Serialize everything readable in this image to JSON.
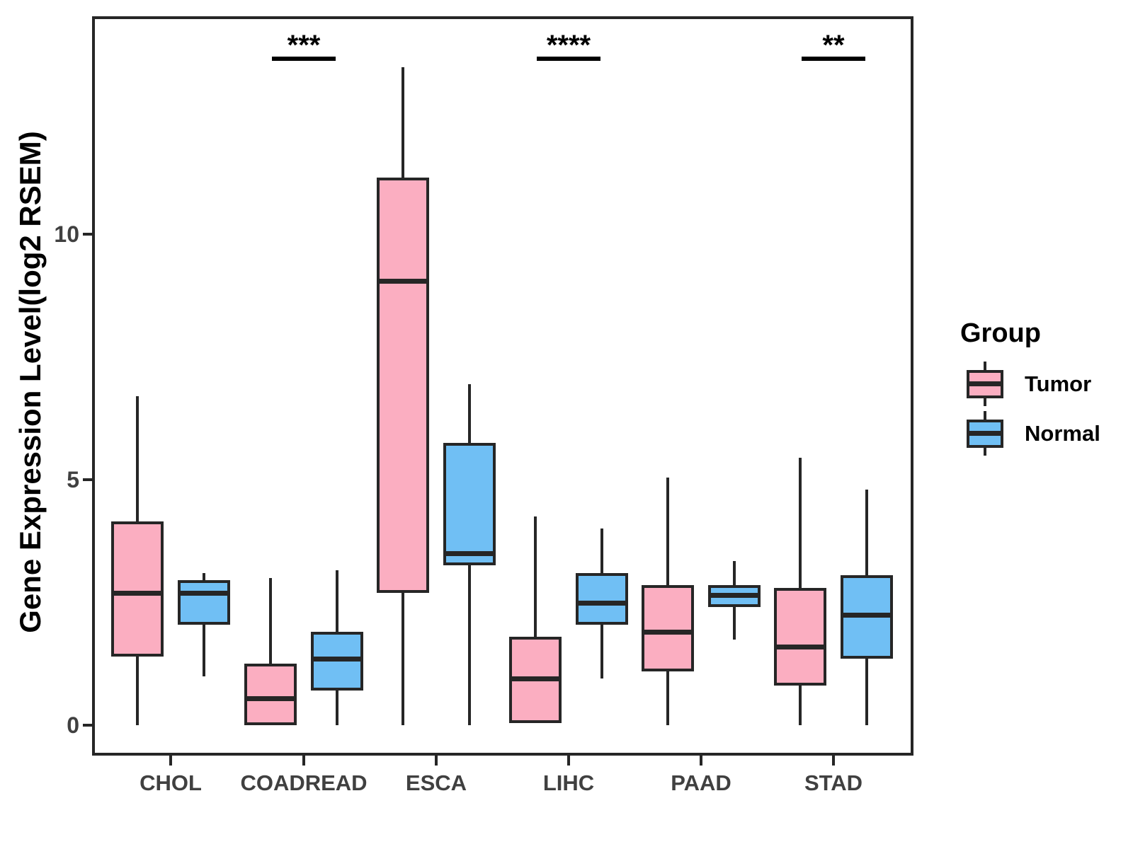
{
  "figure": {
    "y_axis": {
      "label": "Gene Expression Level(log2 RSEM)",
      "ticks": [
        "0",
        "5",
        "10"
      ],
      "tick_values": [
        0,
        5,
        10
      ]
    },
    "x_axis": {
      "categories": [
        "CHOL",
        "COADREAD",
        "ESCA",
        "LIHC",
        "PAAD",
        "STAD"
      ]
    },
    "legend": {
      "title": "Group",
      "items": [
        {
          "label": "Tumor",
          "color": "#FBAEC1"
        },
        {
          "label": "Normal",
          "color": "#70BFF4"
        }
      ]
    }
  },
  "chart_data": {
    "type": "boxplot",
    "title": "",
    "xlabel": "",
    "ylabel": "Gene Expression Level(log2 RSEM)",
    "ylim": [
      -0.62,
      14.4
    ],
    "grid": false,
    "legend_position": "right",
    "categories": [
      "CHOL",
      "COADREAD",
      "ESCA",
      "LIHC",
      "PAAD",
      "STAD"
    ],
    "series": [
      {
        "name": "Tumor",
        "color": "#FBAEC1",
        "boxes": [
          {
            "category": "CHOL",
            "min": 0.0,
            "q1": 1.4,
            "median": 2.7,
            "q3": 4.15,
            "max": 6.7
          },
          {
            "category": "COADREAD",
            "min": 0.0,
            "q1": 0.0,
            "median": 0.55,
            "q3": 1.25,
            "max": 3.0
          },
          {
            "category": "ESCA",
            "min": 0.0,
            "q1": 2.7,
            "median": 9.05,
            "q3": 11.15,
            "max": 13.4
          },
          {
            "category": "LIHC",
            "min": 0.05,
            "q1": 0.05,
            "median": 0.95,
            "q3": 1.8,
            "max": 4.25
          },
          {
            "category": "PAAD",
            "min": 0.0,
            "q1": 1.1,
            "median": 1.9,
            "q3": 2.85,
            "max": 5.05
          },
          {
            "category": "STAD",
            "min": 0.0,
            "q1": 0.8,
            "median": 1.6,
            "q3": 2.8,
            "max": 5.45
          }
        ]
      },
      {
        "name": "Normal",
        "color": "#70BFF4",
        "boxes": [
          {
            "category": "CHOL",
            "min": 1.0,
            "q1": 2.05,
            "median": 2.7,
            "q3": 2.95,
            "max": 3.1
          },
          {
            "category": "COADREAD",
            "min": 0.0,
            "q1": 0.7,
            "median": 1.35,
            "q3": 1.9,
            "max": 3.15
          },
          {
            "category": "ESCA",
            "min": 0.0,
            "q1": 3.25,
            "median": 3.5,
            "q3": 5.75,
            "max": 6.95
          },
          {
            "category": "LIHC",
            "min": 0.95,
            "q1": 2.05,
            "median": 2.5,
            "q3": 3.1,
            "max": 4.0
          },
          {
            "category": "PAAD",
            "min": 1.75,
            "q1": 2.4,
            "median": 2.65,
            "q3": 2.85,
            "max": 3.35
          },
          {
            "category": "STAD",
            "min": 0.0,
            "q1": 1.35,
            "median": 2.25,
            "q3": 3.05,
            "max": 4.8
          }
        ]
      }
    ],
    "significance": [
      {
        "category": "COADREAD",
        "stars": "***"
      },
      {
        "category": "LIHC",
        "stars": "****"
      },
      {
        "category": "STAD",
        "stars": "**"
      }
    ],
    "stroke_color": "#262626"
  }
}
